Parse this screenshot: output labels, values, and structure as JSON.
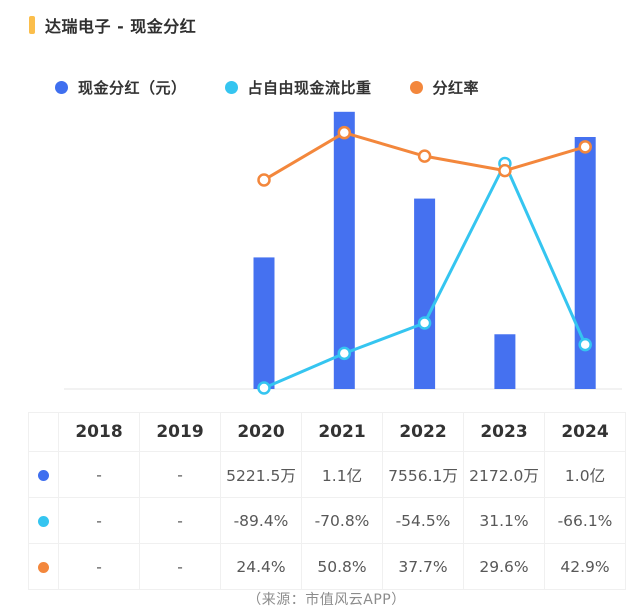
{
  "header": {
    "title": "达瑞电子 - 现金分红",
    "marker_color": "#FBBE4B"
  },
  "legend": {
    "items": [
      {
        "label": "现金分红（元）",
        "color": "#3F6FEF"
      },
      {
        "label": "占自由现金流比重",
        "color": "#35C5F0"
      },
      {
        "label": "分红率",
        "color": "#F3873C"
      }
    ]
  },
  "chart_data": {
    "type": "bar",
    "subtype": "bar+line combo",
    "title": "达瑞电子 - 现金分红",
    "categories": [
      "2018",
      "2019",
      "2020",
      "2021",
      "2022",
      "2023",
      "2024"
    ],
    "series": [
      {
        "name": "现金分红（元）",
        "type": "bar",
        "unit": "万元",
        "color": "#4571F0",
        "values": [
          null,
          null,
          5221.5,
          11000,
          7556.1,
          2172.0,
          10000
        ],
        "display": [
          "-",
          "-",
          "5221.5万",
          "1.1亿",
          "7556.1万",
          "2172.0万",
          "1.0亿"
        ]
      },
      {
        "name": "占自由现金流比重",
        "type": "line",
        "unit": "%",
        "color": "#35C5F0",
        "values": [
          null,
          null,
          -89.4,
          -70.8,
          -54.5,
          31.1,
          -66.1
        ],
        "display": [
          "-",
          "-",
          "-89.4%",
          "-70.8%",
          "-54.5%",
          "31.1%",
          "-66.1%"
        ]
      },
      {
        "name": "分红率",
        "type": "line",
        "unit": "%",
        "color": "#F3873C",
        "values": [
          null,
          null,
          24.4,
          50.8,
          37.7,
          29.6,
          42.9
        ],
        "display": [
          "-",
          "-",
          "24.4%",
          "50.8%",
          "37.7%",
          "29.6%",
          "42.9%"
        ]
      }
    ],
    "legend_position": "top",
    "grid": false,
    "baseline_axis": true,
    "bar_axis_range_wan": [
      0,
      11400
    ],
    "percent_axis_range": [
      -91,
      64
    ]
  },
  "table": {
    "headers": [
      "2018",
      "2019",
      "2020",
      "2021",
      "2022",
      "2023",
      "2024"
    ],
    "rows": [
      {
        "series": "现金分红（元）",
        "marker_color": "#3F6FEF",
        "cells": [
          "-",
          "-",
          "5221.5万",
          "1.1亿",
          "7556.1万",
          "2172.0万",
          "1.0亿"
        ]
      },
      {
        "series": "占自由现金流比重",
        "marker_color": "#35C5F0",
        "cells": [
          "-",
          "-",
          "-89.4%",
          "-70.8%",
          "-54.5%",
          "31.1%",
          "-66.1%"
        ]
      },
      {
        "series": "分红率",
        "marker_color": "#F3873C",
        "cells": [
          "-",
          "-",
          "24.4%",
          "50.8%",
          "37.7%",
          "29.6%",
          "42.9%"
        ]
      }
    ]
  },
  "footer": {
    "source": "（来源：市值风云APP）"
  }
}
